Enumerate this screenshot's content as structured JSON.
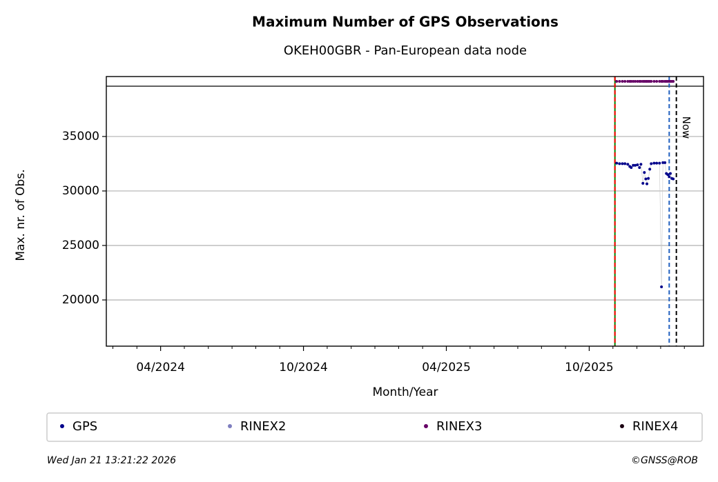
{
  "chart_data": {
    "type": "scatter",
    "title": "Maximum Number of GPS Observations",
    "subtitle": "OKEH00GBR - Pan-European data node",
    "x_label": "Month/Year",
    "y_label": "Max. nr. of Obs.",
    "x": [
      2025.846,
      2025.856,
      2025.866,
      2025.875,
      2025.885,
      2025.892,
      2025.897,
      2025.904,
      2025.911,
      2025.919,
      2025.926,
      2025.931,
      2025.938,
      2025.943,
      2025.948,
      2025.952,
      2025.957,
      2025.962,
      2025.967,
      2025.977,
      2025.986,
      2025.996,
      2026.003,
      2026.008,
      2026.015,
      2026.02,
      2026.025,
      2026.03,
      2026.034,
      2026.039,
      2026.044
    ],
    "series": [
      {
        "name": "GPS",
        "color": "#00008b",
        "line": true,
        "values": [
          32550,
          32500,
          32500,
          32500,
          32450,
          32250,
          32150,
          32350,
          32350,
          32400,
          32150,
          32450,
          30700,
          31700,
          31100,
          30650,
          31150,
          32000,
          32500,
          32550,
          32550,
          32550,
          21200,
          32600,
          32600,
          31600,
          31500,
          31300,
          31600,
          31150,
          31100
        ]
      },
      {
        "name": "RINEX2",
        "color": "#7f7fbf",
        "line": false,
        "values": [
          null,
          null,
          null,
          null,
          null,
          null,
          null,
          null,
          null,
          null,
          null,
          null,
          null,
          null,
          null,
          null,
          null,
          null,
          null,
          null,
          null,
          null,
          null,
          null,
          null,
          null,
          null,
          null,
          null,
          null,
          null
        ]
      },
      {
        "name": "RINEX3",
        "color": "#660066",
        "line": false,
        "values": [
          40060,
          40060,
          40060,
          40060,
          40060,
          40060,
          40060,
          40060,
          40060,
          40060,
          40060,
          40060,
          40060,
          40060,
          40060,
          40060,
          40060,
          40060,
          40060,
          40060,
          40060,
          40060,
          40060,
          40060,
          40060,
          40060,
          40060,
          40060,
          40060,
          40060,
          40060
        ]
      },
      {
        "name": "RINEX4",
        "color": "#1a0011",
        "line": false,
        "values": [
          null,
          null,
          null,
          null,
          null,
          null,
          null,
          null,
          null,
          null,
          null,
          null,
          null,
          null,
          null,
          null,
          null,
          null,
          null,
          null,
          null,
          null,
          null,
          null,
          null,
          null,
          null,
          null,
          null,
          null,
          null
        ]
      }
    ],
    "xlim": [
      2024.06,
      2026.15
    ],
    "xticks": [
      {
        "value": 2024.25,
        "label": "04/2024"
      },
      {
        "value": 2024.75,
        "label": "10/2024"
      },
      {
        "value": 2025.25,
        "label": "04/2025"
      },
      {
        "value": 2025.75,
        "label": "10/2025"
      }
    ],
    "xminorticks": [
      2024.083,
      2024.167,
      2024.333,
      2024.417,
      2024.5,
      2024.583,
      2024.667,
      2024.833,
      2024.917,
      2025.0,
      2025.083,
      2025.167,
      2025.333,
      2025.417,
      2025.5,
      2025.583,
      2025.667,
      2025.833,
      2025.917,
      2026.0,
      2026.083
    ],
    "ylim": [
      15760,
      40500
    ],
    "yticks": [
      20000,
      25000,
      30000,
      35000
    ],
    "grid": true,
    "vlines": [
      {
        "x": 2025.84,
        "color": "#008000",
        "dash": false
      },
      {
        "x": 2025.84,
        "color": "#ff0000",
        "dash": true
      },
      {
        "x": 2026.03,
        "color": "#1f5fbf",
        "dash": true
      },
      {
        "x": 2026.055,
        "color": "#000000",
        "dash": true,
        "label": "Now"
      }
    ],
    "legend": "bottom",
    "footer_left": "Wed Jan 21 13:21:22 2026",
    "footer_right": "©GNSS@ROB"
  }
}
